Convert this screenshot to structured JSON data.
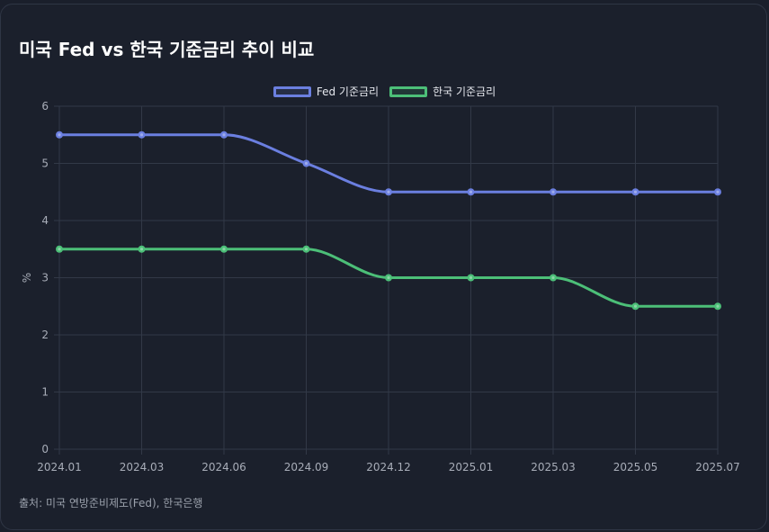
{
  "title": "미국 Fed vs 한국 기준금리 추이 비교",
  "source": "출처: 미국 연방준비제도(Fed), 한국은행",
  "chart_data": {
    "type": "line",
    "x": [
      "2024.01",
      "2024.03",
      "2024.06",
      "2024.09",
      "2024.12",
      "2025.01",
      "2025.03",
      "2025.05",
      "2025.07"
    ],
    "ylabel": "%",
    "ylim": [
      0,
      6
    ],
    "yticks": [
      0,
      1,
      2,
      3,
      4,
      5,
      6
    ],
    "grid": true,
    "legend_position": "top-center",
    "series": [
      {
        "name": "Fed 기준금리",
        "color": "#6b7fe0",
        "values": [
          5.5,
          5.5,
          5.5,
          5.0,
          4.5,
          4.5,
          4.5,
          4.5,
          4.5
        ]
      },
      {
        "name": "한국 기준금리",
        "color": "#4cbf78",
        "values": [
          3.5,
          3.5,
          3.5,
          3.5,
          3.0,
          3.0,
          3.0,
          2.5,
          2.5
        ]
      }
    ]
  },
  "colors": {
    "background": "#1b202c",
    "grid": "#323947",
    "tick_text": "#a8adb8"
  }
}
